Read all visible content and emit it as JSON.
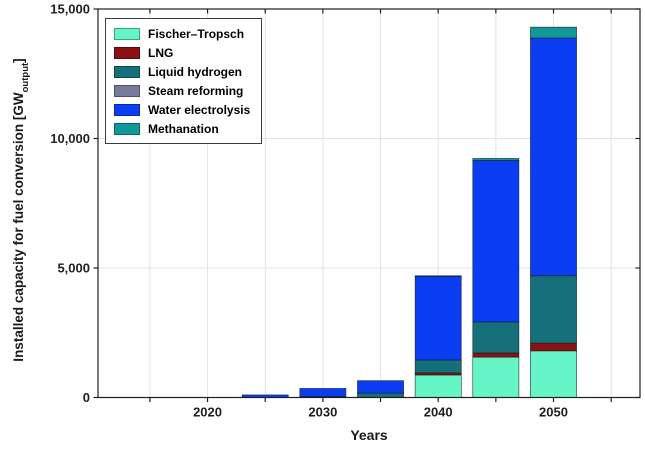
{
  "figure": {
    "xlabel": "Years",
    "ylabel_prefix": "Installed capacity for fuel conversion [GW",
    "ylabel_sub": "output",
    "ylabel_suffix": "]"
  },
  "chart_data": {
    "type": "bar",
    "stacked": true,
    "title": "",
    "xlabel": "Years",
    "ylabel": "Installed capacity for fuel conversion [GW_output]",
    "x": [
      2025,
      2030,
      2035,
      2040,
      2045,
      2050
    ],
    "bar_width_years": 4,
    "series": [
      {
        "name": "Fischer–Tropsch",
        "color": "#66F5C6",
        "values": [
          0,
          0,
          0,
          870,
          1560,
          1800
        ]
      },
      {
        "name": "LNG",
        "color": "#8C1113",
        "values": [
          0,
          0,
          0,
          80,
          160,
          300
        ]
      },
      {
        "name": "Liquid hydrogen",
        "color": "#15707C",
        "values": [
          0,
          40,
          170,
          500,
          1200,
          2600
        ]
      },
      {
        "name": "Steam reforming",
        "color": "#777C9C",
        "values": [
          0,
          0,
          0,
          0,
          0,
          0
        ]
      },
      {
        "name": "Water electrolysis",
        "color": "#0B3EF3",
        "values": [
          100,
          310,
          480,
          3230,
          6230,
          9180
        ]
      },
      {
        "name": "Methanation",
        "color": "#12989A",
        "values": [
          0,
          0,
          0,
          20,
          80,
          420
        ]
      }
    ],
    "xlim": [
      2010.5,
      2057.5
    ],
    "ylim": [
      0,
      15000
    ],
    "x_tick_years": [
      2015,
      2020,
      2025,
      2030,
      2035,
      2040,
      2045,
      2050,
      2055
    ],
    "x_tick_labels": [
      {
        "year": 2020,
        "label": "2020"
      },
      {
        "year": 2030,
        "label": "2030"
      },
      {
        "year": 2040,
        "label": "2040"
      },
      {
        "year": 2050,
        "label": "2050"
      }
    ],
    "y_tick_labels": [
      {
        "value": 0,
        "label": "0"
      },
      {
        "value": 5000,
        "label": "5,000"
      },
      {
        "value": 10000,
        "label": "10,000"
      },
      {
        "value": 15000,
        "label": "15,000"
      }
    ],
    "grid": true,
    "legend_position": "top-left",
    "colors": {
      "axis": "#1f1f1f",
      "gridline": "#e3e3e3",
      "bar_edge": "#101010",
      "background": "#ffffff"
    }
  }
}
